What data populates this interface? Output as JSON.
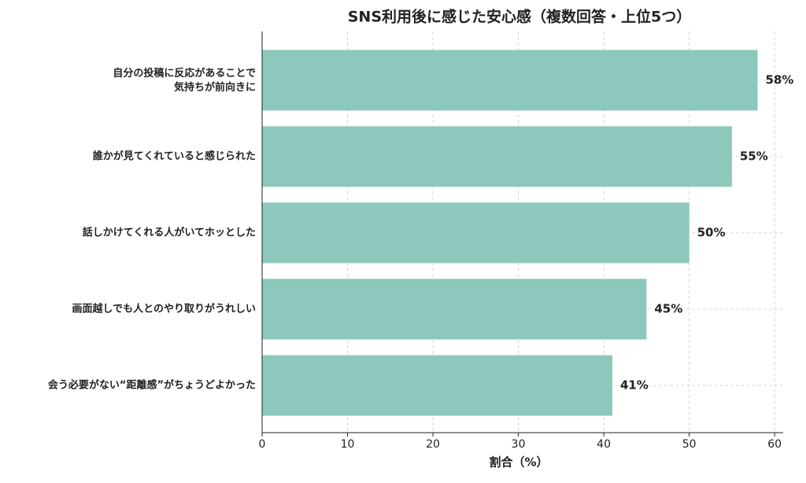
{
  "chart_data": {
    "type": "barh",
    "title": "SNS利用後に感じた安心感（複数回答・上位5つ）",
    "xlabel": "割合（%）",
    "categories": [
      "自分の投稿に反応があることで\n気持ちが前向きに",
      "誰かが見てくれていると感じられた",
      "話しかけてくれる人がいてホッとした",
      "画面越しでも人とのやり取りがうれしい",
      "会う必要がない“距離感”がちょうどよかった"
    ],
    "values": [
      58,
      55,
      50,
      45,
      41
    ],
    "value_labels": [
      "58%",
      "55%",
      "50%",
      "45%",
      "41%"
    ],
    "color": "#8cc8bc",
    "xlim": [
      0,
      61
    ],
    "xticks": [
      0,
      10,
      20,
      30,
      40,
      50,
      60
    ],
    "grid": true
  }
}
